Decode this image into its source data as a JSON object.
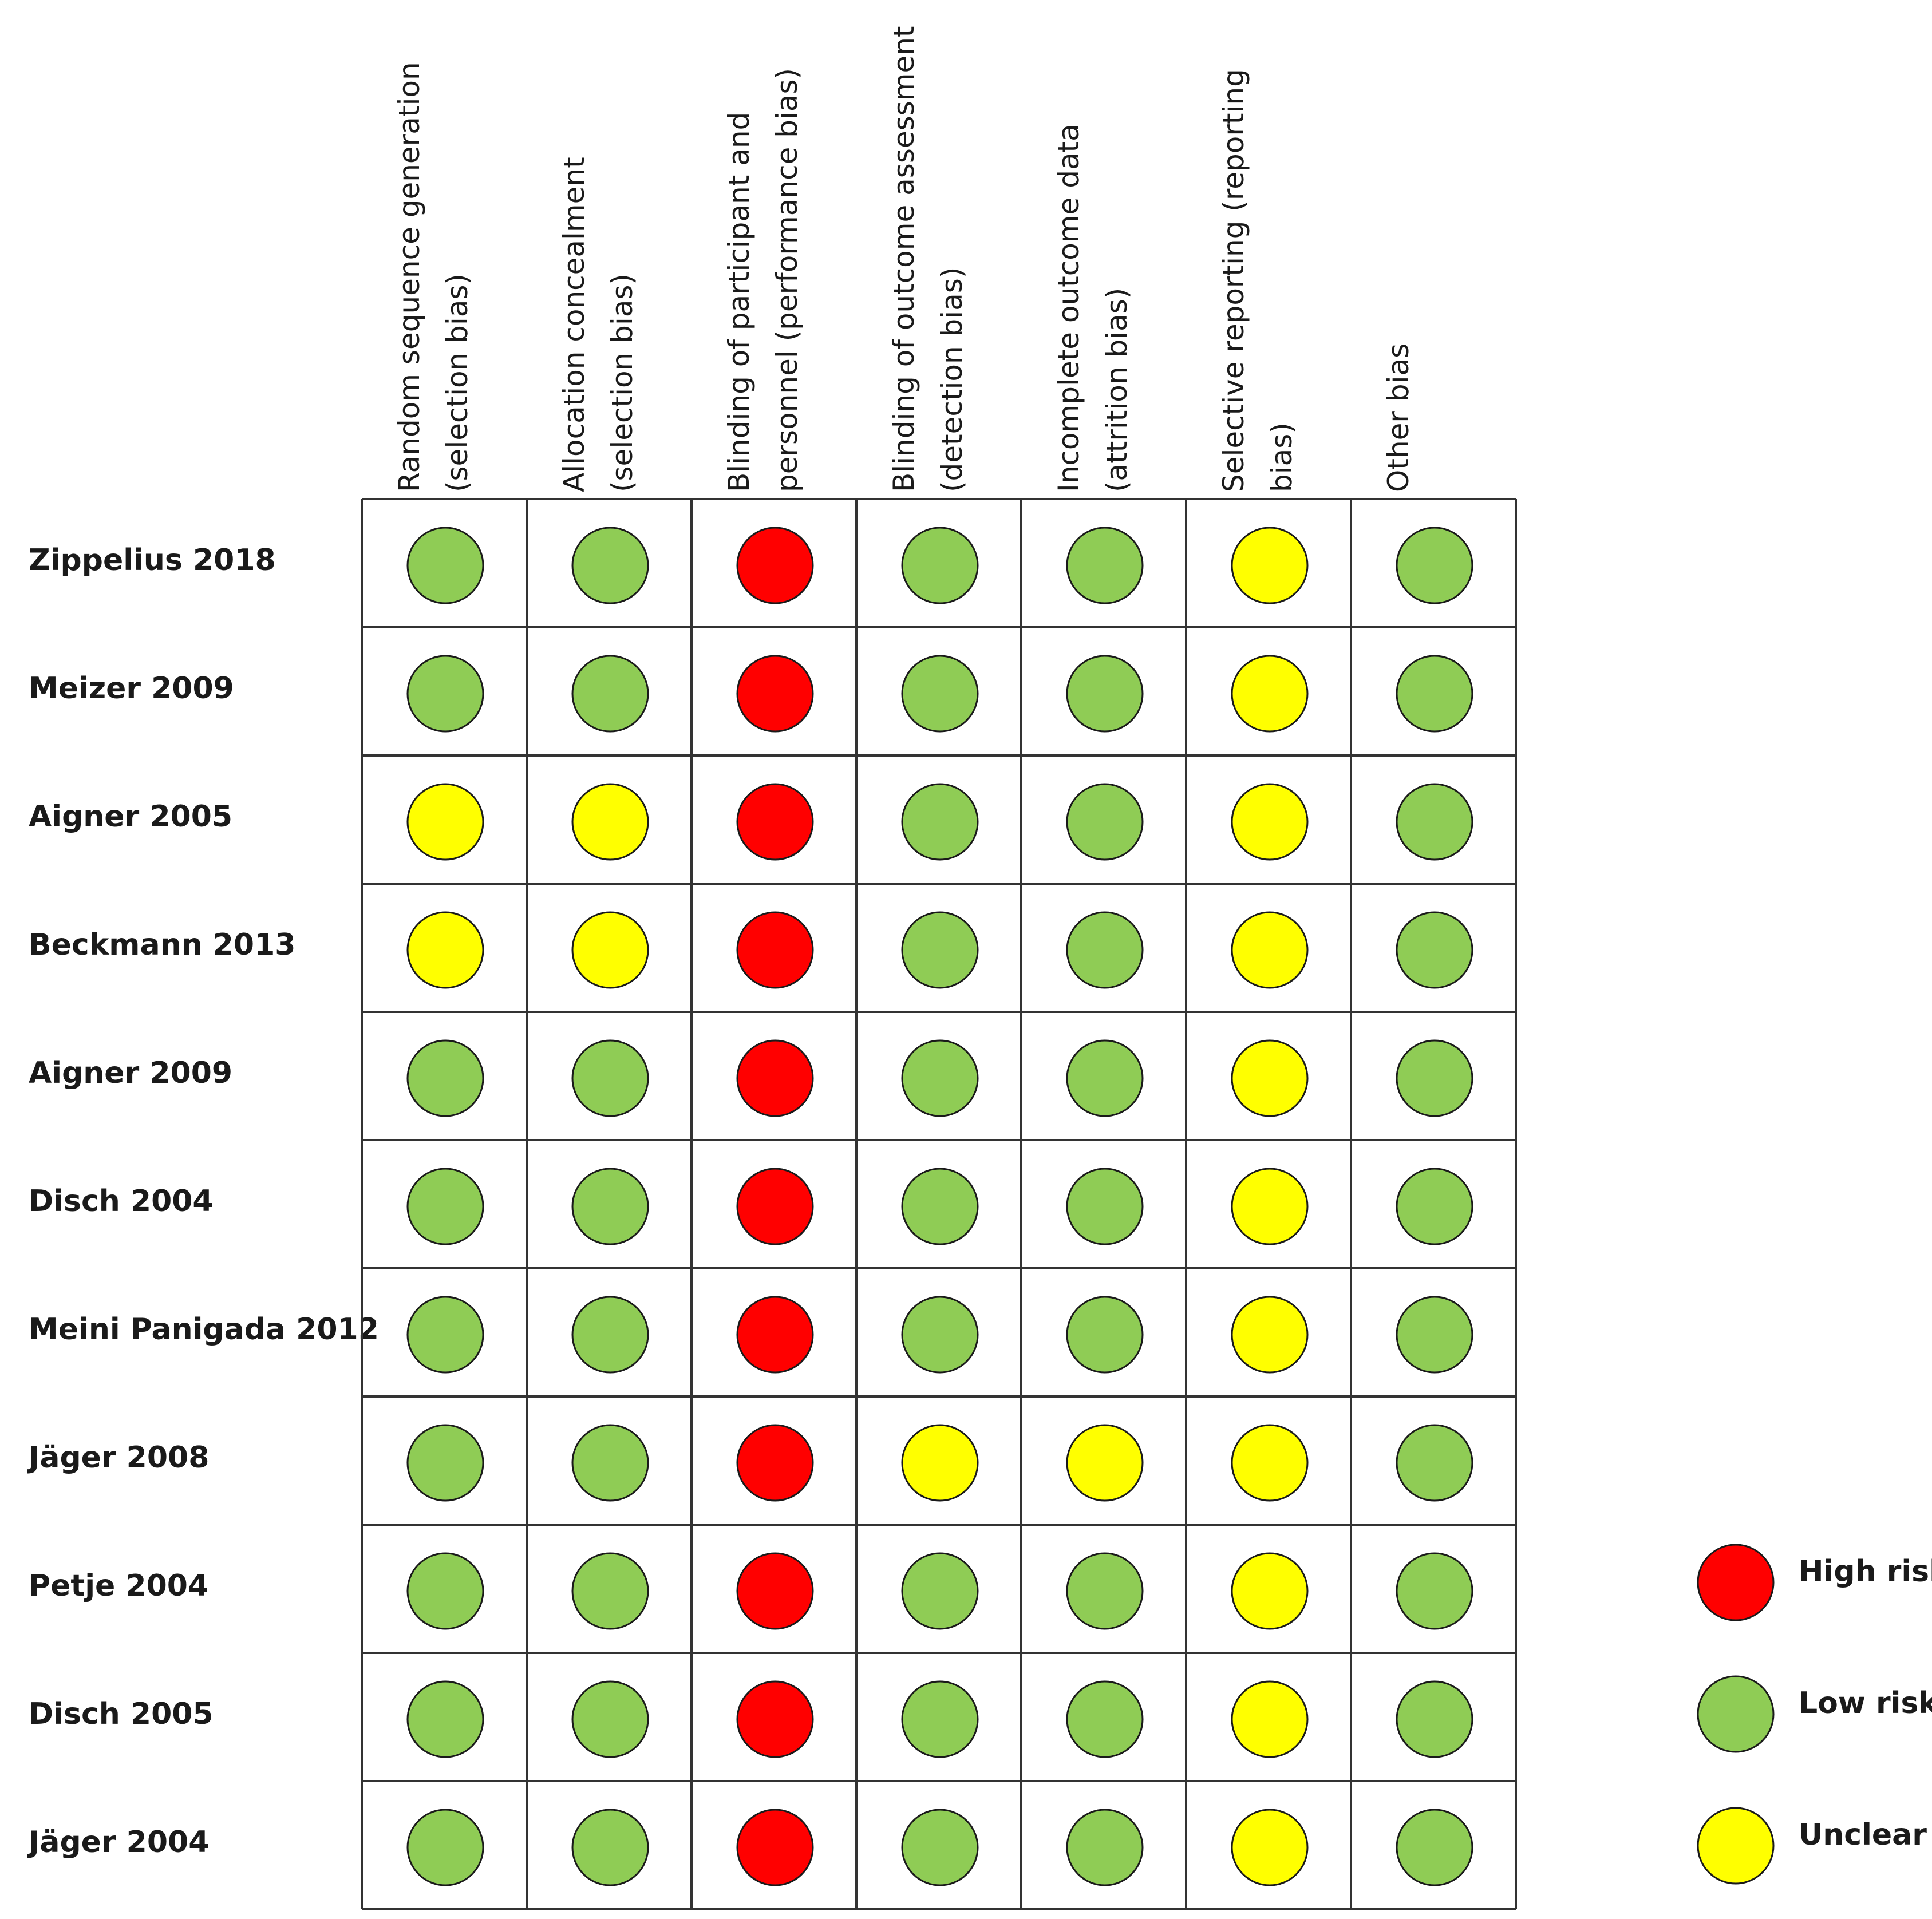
{
  "chart_data": {
    "type": "table",
    "columns": [
      [
        "Random sequence generation",
        "(selection bias)"
      ],
      [
        "Allocation concealment",
        "(selection bias)"
      ],
      [
        "Blinding of participant and",
        "personnel (performance bias)"
      ],
      [
        "Blinding of outcome assessment",
        "(detection bias)"
      ],
      [
        "Incomplete outcome data",
        "(attrition bias)"
      ],
      [
        "Selective reporting (reporting",
        "bias)"
      ],
      [
        "Other bias"
      ]
    ],
    "rows": [
      "Zippelius 2018",
      "Meizer 2009",
      "Aigner 2005",
      "Beckmann 2013",
      "Aigner 2009",
      "Disch 2004",
      "Meini Panigada 2012",
      "Jäger 2008",
      "Petje 2004",
      "Disch 2005",
      "Jäger 2004"
    ],
    "values": [
      [
        "low",
        "low",
        "high",
        "low",
        "low",
        "unclear",
        "low"
      ],
      [
        "low",
        "low",
        "high",
        "low",
        "low",
        "unclear",
        "low"
      ],
      [
        "unclear",
        "unclear",
        "high",
        "low",
        "low",
        "unclear",
        "low"
      ],
      [
        "unclear",
        "unclear",
        "high",
        "low",
        "low",
        "unclear",
        "low"
      ],
      [
        "low",
        "low",
        "high",
        "low",
        "low",
        "unclear",
        "low"
      ],
      [
        "low",
        "low",
        "high",
        "low",
        "low",
        "unclear",
        "low"
      ],
      [
        "low",
        "low",
        "high",
        "low",
        "low",
        "unclear",
        "low"
      ],
      [
        "low",
        "low",
        "high",
        "unclear",
        "unclear",
        "unclear",
        "low"
      ],
      [
        "low",
        "low",
        "high",
        "low",
        "low",
        "unclear",
        "low"
      ],
      [
        "low",
        "low",
        "high",
        "low",
        "low",
        "unclear",
        "low"
      ],
      [
        "low",
        "low",
        "high",
        "low",
        "low",
        "unclear",
        "low"
      ]
    ],
    "legend": {
      "placement": "bottom-right",
      "entries": [
        {
          "key": "high",
          "label": "High risk",
          "color": "#ff0000"
        },
        {
          "key": "low",
          "label": "Low risk",
          "color": "#8fcc55"
        },
        {
          "key": "unclear",
          "label": "Unclear",
          "color": "#ffff00"
        }
      ]
    }
  }
}
